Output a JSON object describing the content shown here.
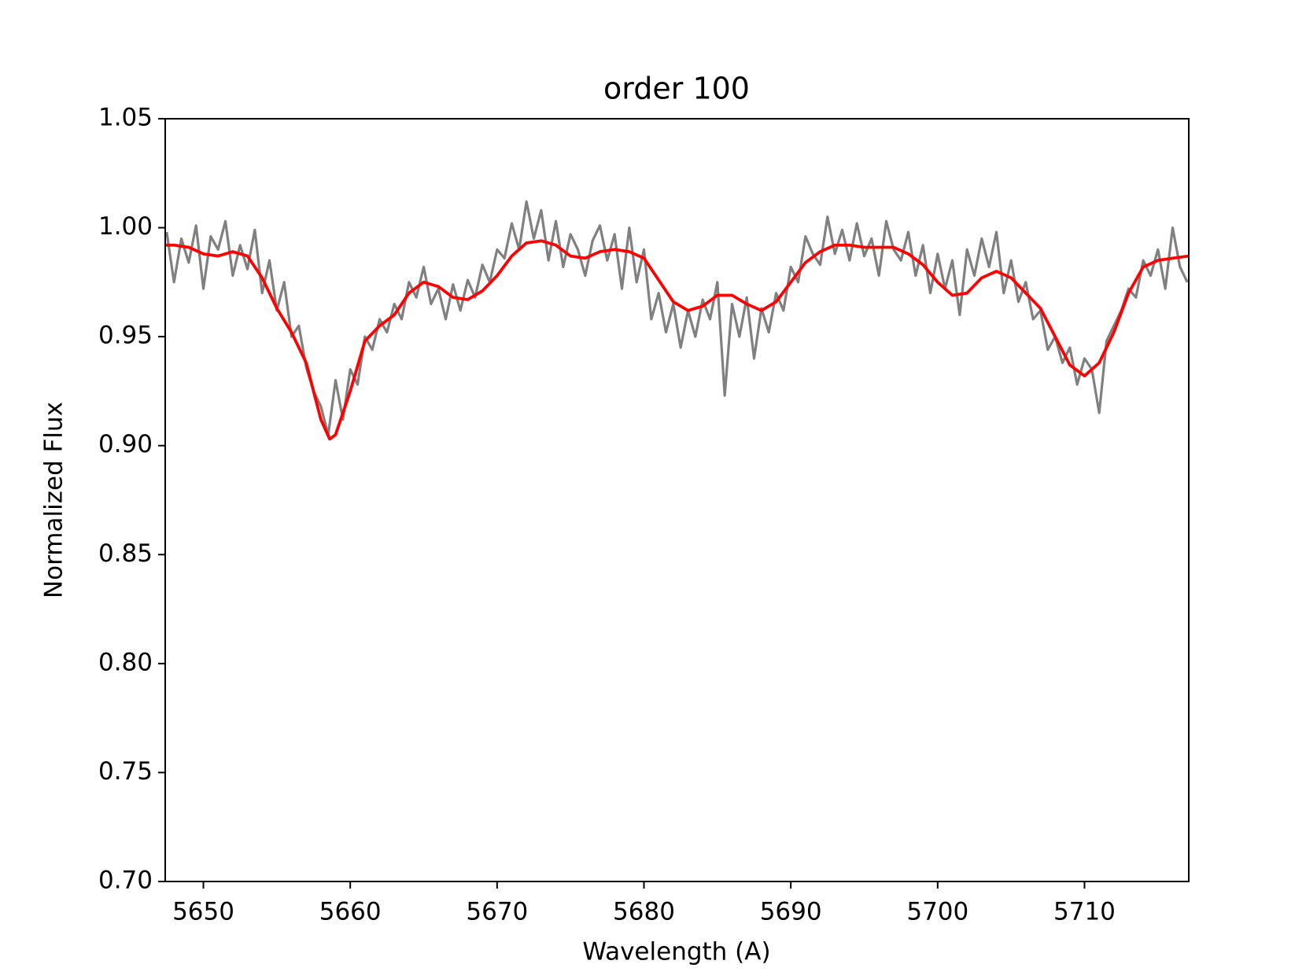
{
  "chart_data": {
    "type": "line",
    "title": "order 100",
    "xlabel": "Wavelength (A)",
    "ylabel": "Normalized Flux",
    "xlim": [
      5647.4,
      5717.1
    ],
    "xticks": [
      5650,
      5660,
      5670,
      5680,
      5690,
      5700,
      5710
    ],
    "ylim": [
      0.7,
      1.05
    ],
    "yticks": [
      {
        "value": 0.7,
        "label": "0.70"
      },
      0.75,
      {
        "value": 0.8,
        "label": "0.80"
      },
      0.85,
      {
        "value": 0.9,
        "label": "0.90"
      },
      0.95,
      {
        "value": 1.0,
        "label": "1.00"
      },
      1.05
    ],
    "grid": false,
    "series": [
      {
        "color": "#808080",
        "width": 3.2,
        "x": [
          5647.5,
          5648,
          5648.5,
          5649,
          5649.5,
          5650,
          5650.5,
          5651,
          5651.5,
          5652,
          5652.5,
          5653,
          5653.5,
          5654,
          5654.5,
          5655,
          5655.5,
          5656,
          5656.5,
          5657,
          5657.5,
          5658,
          5658.5,
          5659,
          5659.5,
          5660,
          5660.5,
          5661,
          5661.5,
          5662,
          5662.5,
          5663,
          5663.5,
          5664,
          5664.5,
          5665,
          5665.5,
          5666,
          5666.5,
          5667,
          5667.5,
          5668,
          5668.5,
          5669,
          5669.5,
          5670,
          5670.5,
          5671,
          5671.5,
          5672,
          5672.5,
          5673,
          5673.5,
          5674,
          5674.5,
          5675,
          5675.5,
          5676,
          5676.5,
          5677,
          5677.5,
          5678,
          5678.5,
          5679,
          5679.5,
          5680,
          5680.5,
          5681,
          5681.5,
          5682,
          5682.5,
          5683,
          5683.5,
          5684,
          5684.5,
          5685,
          5685.5,
          5686,
          5686.5,
          5687,
          5687.5,
          5688,
          5688.5,
          5689,
          5689.5,
          5690,
          5690.5,
          5691,
          5691.5,
          5692,
          5692.5,
          5693,
          5693.5,
          5694,
          5694.5,
          5695,
          5695.5,
          5696,
          5696.5,
          5697,
          5697.5,
          5698,
          5698.5,
          5699,
          5699.5,
          5700,
          5700.5,
          5701,
          5701.5,
          5702,
          5702.5,
          5703,
          5703.5,
          5704,
          5704.5,
          5705,
          5705.5,
          5706,
          5706.5,
          5707,
          5707.5,
          5708,
          5708.5,
          5709,
          5709.5,
          5710,
          5710.5,
          5711,
          5711.5,
          5712,
          5712.5,
          5713,
          5713.5,
          5714,
          5714.5,
          5715,
          5715.5,
          5716,
          5716.5,
          5717
        ],
        "values": [
          0.998,
          0.975,
          0.995,
          0.984,
          1.001,
          0.972,
          0.996,
          0.99,
          1.003,
          0.978,
          0.992,
          0.981,
          0.999,
          0.97,
          0.985,
          0.962,
          0.975,
          0.95,
          0.955,
          0.936,
          0.925,
          0.918,
          0.905,
          0.93,
          0.912,
          0.935,
          0.928,
          0.95,
          0.944,
          0.958,
          0.952,
          0.965,
          0.958,
          0.975,
          0.968,
          0.982,
          0.965,
          0.972,
          0.958,
          0.974,
          0.962,
          0.976,
          0.968,
          0.983,
          0.975,
          0.99,
          0.986,
          1.002,
          0.99,
          1.012,
          0.995,
          1.008,
          0.985,
          1.003,
          0.982,
          0.997,
          0.99,
          0.978,
          0.994,
          1.001,
          0.985,
          0.997,
          0.972,
          1.0,
          0.975,
          0.99,
          0.958,
          0.97,
          0.952,
          0.965,
          0.945,
          0.962,
          0.95,
          0.967,
          0.958,
          0.975,
          0.923,
          0.965,
          0.95,
          0.968,
          0.94,
          0.963,
          0.952,
          0.97,
          0.962,
          0.982,
          0.975,
          0.996,
          0.988,
          0.983,
          1.005,
          0.988,
          0.999,
          0.985,
          1.002,
          0.987,
          0.995,
          0.978,
          1.003,
          0.99,
          0.985,
          0.998,
          0.978,
          0.992,
          0.97,
          0.988,
          0.972,
          0.985,
          0.96,
          0.99,
          0.978,
          0.995,
          0.982,
          0.998,
          0.97,
          0.985,
          0.966,
          0.975,
          0.958,
          0.962,
          0.944,
          0.95,
          0.938,
          0.945,
          0.928,
          0.94,
          0.935,
          0.915,
          0.948,
          0.955,
          0.962,
          0.972,
          0.968,
          0.985,
          0.978,
          0.99,
          0.972,
          1.0,
          0.982,
          0.975
        ]
      },
      {
        "color": "#ff0000",
        "width": 3.8,
        "x": [
          5647.4,
          5648,
          5649,
          5650,
          5651,
          5652,
          5653,
          5654,
          5655,
          5656,
          5657,
          5658,
          5658.6,
          5659,
          5660,
          5661,
          5662,
          5663,
          5664,
          5665,
          5666,
          5667,
          5668,
          5669,
          5670,
          5671,
          5672,
          5673,
          5674,
          5675,
          5676,
          5677,
          5678,
          5679,
          5680,
          5681,
          5682,
          5683,
          5684,
          5685,
          5686,
          5687,
          5688,
          5689,
          5690,
          5691,
          5692,
          5693,
          5694,
          5695,
          5696,
          5697,
          5698,
          5699,
          5700,
          5701,
          5702,
          5703,
          5704,
          5705,
          5706,
          5707,
          5708,
          5709,
          5710,
          5711,
          5712,
          5713,
          5714,
          5715,
          5716,
          5717.1
        ],
        "values": [
          0.992,
          0.992,
          0.991,
          0.988,
          0.987,
          0.989,
          0.987,
          0.977,
          0.963,
          0.952,
          0.938,
          0.912,
          0.903,
          0.905,
          0.925,
          0.948,
          0.955,
          0.96,
          0.97,
          0.975,
          0.973,
          0.968,
          0.967,
          0.971,
          0.978,
          0.987,
          0.993,
          0.994,
          0.992,
          0.987,
          0.986,
          0.989,
          0.99,
          0.989,
          0.986,
          0.976,
          0.966,
          0.962,
          0.964,
          0.969,
          0.969,
          0.965,
          0.962,
          0.966,
          0.975,
          0.984,
          0.989,
          0.992,
          0.992,
          0.991,
          0.991,
          0.991,
          0.988,
          0.983,
          0.975,
          0.969,
          0.97,
          0.977,
          0.98,
          0.977,
          0.97,
          0.963,
          0.95,
          0.937,
          0.932,
          0.938,
          0.952,
          0.97,
          0.982,
          0.985,
          0.986,
          0.987
        ]
      }
    ]
  }
}
